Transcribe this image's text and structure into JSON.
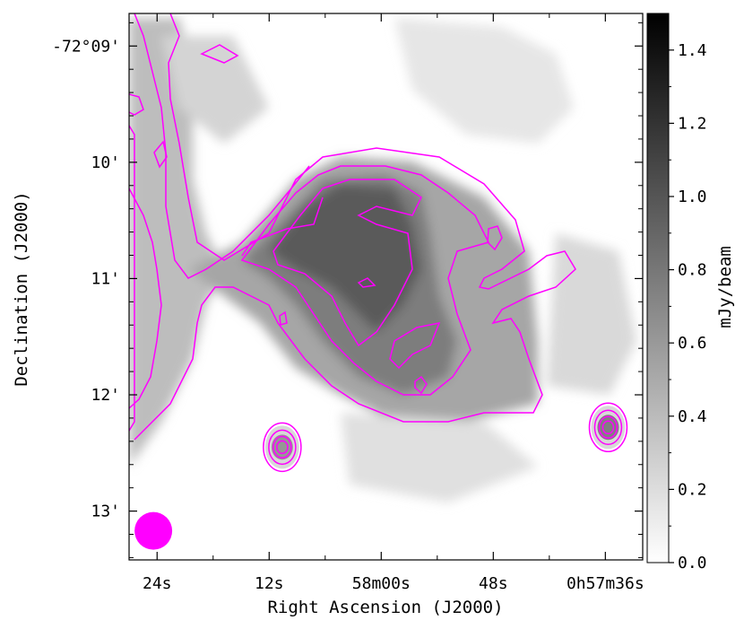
{
  "chart_data": {
    "type": "heatmap",
    "xlabel": "Right Ascension (J2000)",
    "ylabel": "Declination (J2000)",
    "x_ticks": [
      {
        "label": "24s",
        "ra_sec": 24
      },
      {
        "label": "12s",
        "ra_sec": 12
      },
      {
        "label": "58m00s",
        "ra_sec": 0
      },
      {
        "label": "48s",
        "ra_sec": -12
      },
      {
        "label": "0h57m36s",
        "ra_sec": -24
      }
    ],
    "y_ticks": [
      {
        "label": "-72°09'",
        "dec_arcmin": -9
      },
      {
        "label": "10'",
        "dec_arcmin": -10
      },
      {
        "label": "11'",
        "dec_arcmin": -11
      },
      {
        "label": "12'",
        "dec_arcmin": -12
      },
      {
        "label": "13'",
        "dec_arcmin": -13
      }
    ],
    "xlim": [
      27,
      -28
    ],
    "ylim": [
      -13.42,
      -8.72
    ],
    "colorbar": {
      "label": "mJy/beam",
      "range": [
        0.0,
        1.5
      ],
      "ticks": [
        "0.0",
        "0.2",
        "0.4",
        "0.6",
        "0.8",
        "1.0",
        "1.2",
        "1.4"
      ],
      "cmap": "gray_r"
    },
    "contour_color": "#ff00ff",
    "beam": {
      "color": "#ff00ff",
      "ra_sec": 24.4,
      "dec_arcmin": -13.17
    },
    "sources": [
      {
        "ra_sec": 10.6,
        "dec_arcmin": -12.45,
        "peak": 0.62
      },
      {
        "ra_sec": -24.3,
        "dec_arcmin": -12.28,
        "peak": 0.75
      }
    ],
    "grid": false
  }
}
